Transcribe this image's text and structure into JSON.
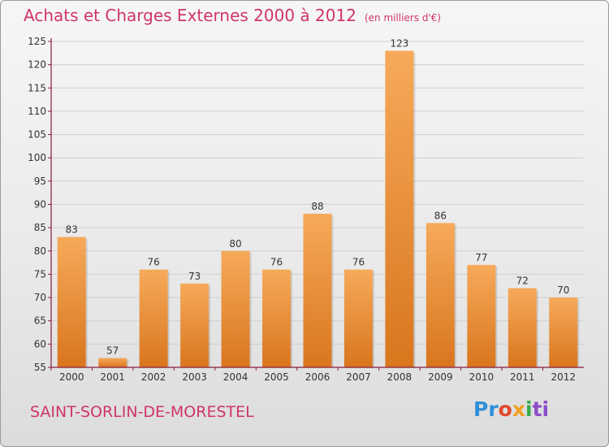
{
  "title": "Achats et Charges Externes 2000 à 2012",
  "unit_label": "(en milliers d'€)",
  "place_name": "SAINT-SORLIN-DE-MORESTEL",
  "logo": {
    "text": "Proxiti",
    "parts": [
      "Pr",
      "o",
      "x",
      "i",
      "ti"
    ]
  },
  "colors": {
    "bar_top": "#f6aa5a",
    "bar_bottom": "#d9761e",
    "title": "#d0346a",
    "axis": "#8b1a3a"
  },
  "chart_data": {
    "type": "bar",
    "categories": [
      "2000",
      "2001",
      "2002",
      "2003",
      "2004",
      "2005",
      "2006",
      "2007",
      "2008",
      "2009",
      "2010",
      "2011",
      "2012"
    ],
    "values": [
      83,
      57,
      76,
      73,
      80,
      76,
      88,
      76,
      123,
      86,
      77,
      72,
      70
    ],
    "ylim": [
      55,
      125
    ],
    "yticks": [
      55,
      60,
      65,
      70,
      75,
      80,
      85,
      90,
      95,
      100,
      105,
      110,
      115,
      120,
      125
    ],
    "grid": true
  }
}
